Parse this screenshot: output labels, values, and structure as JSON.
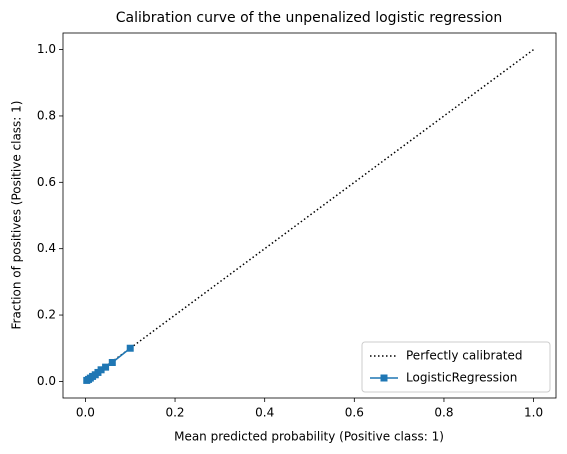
{
  "chart_data": {
    "type": "line",
    "title": "Calibration curve of the unpenalized logistic regression",
    "xlabel": "Mean predicted probability (Positive class: 1)",
    "ylabel": "Fraction of positives (Positive class: 1)",
    "series": [
      {
        "name": "Perfectly calibrated",
        "color": "#000000",
        "linestyle": "dotted",
        "marker": null,
        "x": [
          0,
          1
        ],
        "values": [
          0,
          1
        ]
      },
      {
        "name": "LogisticRegression",
        "color": "#1f77b4",
        "linestyle": "solid",
        "marker": "square",
        "x": [
          0.003,
          0.007,
          0.011,
          0.016,
          0.022,
          0.028,
          0.035,
          0.045,
          0.06,
          0.1
        ],
        "values": [
          0.003,
          0.006,
          0.01,
          0.015,
          0.02,
          0.027,
          0.035,
          0.043,
          0.057,
          0.1
        ]
      }
    ],
    "xlim": [
      -0.05,
      1.05
    ],
    "ylim": [
      -0.05,
      1.05
    ],
    "xticks": [
      {
        "value": 0,
        "label": "0.0"
      },
      0.2,
      0.4,
      0.6,
      0.8,
      {
        "value": 1,
        "label": "1.0"
      }
    ],
    "yticks": [
      {
        "value": 0,
        "label": "0.0"
      },
      0.2,
      0.4,
      0.6,
      0.8,
      {
        "value": 1,
        "label": "1.0"
      }
    ],
    "grid": false,
    "legend": "lower right"
  }
}
